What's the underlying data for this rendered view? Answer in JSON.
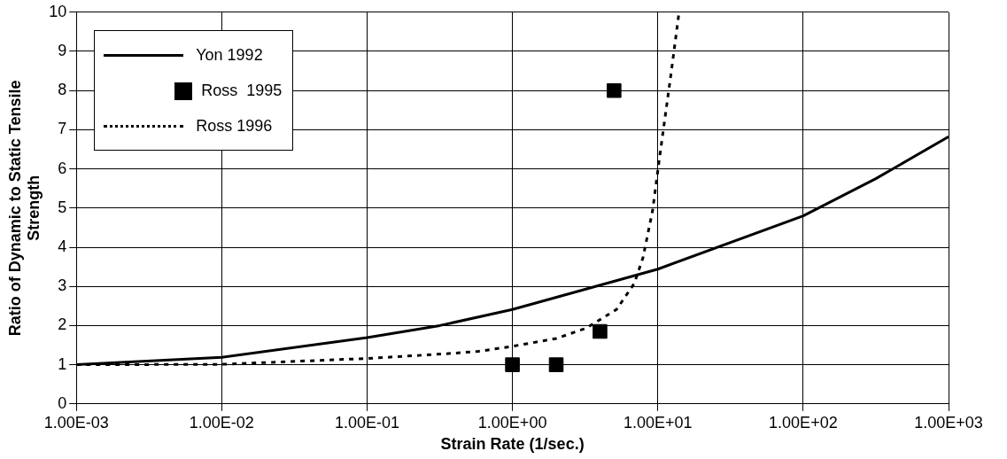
{
  "chart_data": {
    "type": "line",
    "xlabel": "Strain Rate (1/sec.)",
    "ylabel": "Ratio of Dynamic to Static Tensile Strength",
    "log": "x",
    "xlim": [
      0.001,
      1000
    ],
    "xticks": [
      {
        "value": 0.001,
        "label": "1.00E-03"
      },
      {
        "value": 0.01,
        "label": "1.00E-02"
      },
      {
        "value": 0.1,
        "label": "1.00E-01"
      },
      {
        "value": 1,
        "label": "1.00E+00"
      },
      {
        "value": 10,
        "label": "1.00E+01"
      },
      {
        "value": 100,
        "label": "1.00E+02"
      },
      {
        "value": 1000,
        "label": "1.00E+03"
      }
    ],
    "ylim": [
      0,
      10
    ],
    "yticks": [
      0,
      1,
      2,
      3,
      4,
      5,
      6,
      7,
      8,
      9,
      10
    ],
    "grid": true,
    "legend": "top left",
    "series": [
      {
        "name": "Yon 1992",
        "color": "#000000",
        "line_style": "solid",
        "marker": "none",
        "x": [
          0.001,
          0.01,
          0.1,
          0.316,
          1,
          10,
          100,
          316,
          1000
        ],
        "values": [
          1,
          1.19,
          1.69,
          2.0,
          2.41,
          3.44,
          4.8,
          5.75,
          6.82
        ]
      },
      {
        "name": "Ross  1995",
        "type": "scatter",
        "color": "#000000",
        "marker": "square",
        "x": [
          1,
          2,
          4,
          5
        ],
        "values": [
          1,
          1,
          1.85,
          8
        ]
      },
      {
        "name": "Ross 1996",
        "color": "#000000",
        "line_style": "dotted",
        "marker": "none",
        "x": [
          0.001,
          0.01,
          0.1,
          0.35,
          0.58,
          1,
          2,
          3.2,
          5.2,
          6.9,
          7.9,
          9.2,
          10.2,
          11.2,
          12.4,
          14
        ],
        "values": [
          1,
          1.01,
          1.16,
          1.28,
          1.34,
          1.47,
          1.67,
          1.93,
          2.41,
          3.08,
          3.73,
          4.93,
          6.2,
          7.3,
          8.5,
          10
        ]
      }
    ]
  }
}
